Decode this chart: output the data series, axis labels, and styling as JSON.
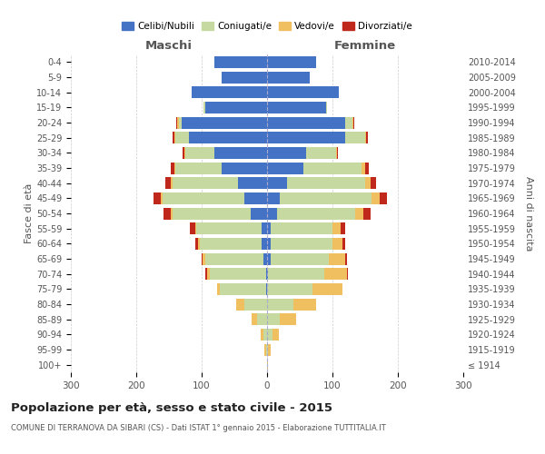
{
  "age_groups": [
    "100+",
    "95-99",
    "90-94",
    "85-89",
    "80-84",
    "75-79",
    "70-74",
    "65-69",
    "60-64",
    "55-59",
    "50-54",
    "45-49",
    "40-44",
    "35-39",
    "30-34",
    "25-29",
    "20-24",
    "15-19",
    "10-14",
    "5-9",
    "0-4"
  ],
  "birth_years": [
    "≤ 1914",
    "1915-1919",
    "1920-1924",
    "1925-1929",
    "1930-1934",
    "1935-1939",
    "1940-1944",
    "1945-1949",
    "1950-1954",
    "1955-1959",
    "1960-1964",
    "1965-1969",
    "1970-1974",
    "1975-1979",
    "1980-1984",
    "1985-1989",
    "1990-1994",
    "1995-1999",
    "2000-2004",
    "2005-2009",
    "2010-2014"
  ],
  "maschi": {
    "celibi": [
      0,
      0,
      0,
      0,
      0,
      2,
      2,
      5,
      8,
      8,
      25,
      35,
      45,
      70,
      80,
      120,
      130,
      95,
      115,
      70,
      80
    ],
    "coniugati": [
      0,
      2,
      5,
      15,
      35,
      70,
      85,
      90,
      95,
      100,
      120,
      125,
      100,
      70,
      45,
      20,
      5,
      2,
      0,
      0,
      0
    ],
    "vedovi": [
      0,
      2,
      5,
      8,
      12,
      5,
      5,
      3,
      2,
      2,
      2,
      2,
      2,
      2,
      2,
      2,
      2,
      0,
      0,
      0,
      0
    ],
    "divorziati": [
      0,
      0,
      0,
      0,
      0,
      0,
      2,
      2,
      5,
      8,
      12,
      12,
      8,
      5,
      2,
      2,
      2,
      0,
      0,
      0,
      0
    ]
  },
  "femmine": {
    "nubili": [
      0,
      0,
      0,
      0,
      0,
      0,
      2,
      5,
      5,
      5,
      15,
      20,
      30,
      55,
      60,
      120,
      120,
      90,
      110,
      65,
      75
    ],
    "coniugate": [
      0,
      2,
      8,
      20,
      40,
      70,
      85,
      90,
      95,
      95,
      120,
      140,
      120,
      90,
      45,
      30,
      10,
      2,
      0,
      0,
      0
    ],
    "vedove": [
      2,
      3,
      10,
      25,
      35,
      45,
      35,
      25,
      15,
      12,
      12,
      12,
      8,
      5,
      2,
      2,
      2,
      0,
      0,
      0,
      0
    ],
    "divorziate": [
      0,
      0,
      0,
      0,
      0,
      0,
      2,
      2,
      5,
      8,
      12,
      12,
      8,
      5,
      2,
      2,
      2,
      0,
      0,
      0,
      0
    ]
  },
  "colors": {
    "celibi": "#4472C4",
    "coniugati": "#c5d9a0",
    "vedovi": "#f0c060",
    "divorziati": "#c0281c"
  },
  "xlim": 300,
  "title": "Popolazione per età, sesso e stato civile - 2015",
  "subtitle": "COMUNE DI TERRANOVA DA SIBARI (CS) - Dati ISTAT 1° gennaio 2015 - Elaborazione TUTTITALIA.IT",
  "ylabel_left": "Fasce di età",
  "ylabel_right": "Anni di nascita",
  "xlabel_maschi": "Maschi",
  "xlabel_femmine": "Femmine",
  "legend_labels": [
    "Celibi/Nubili",
    "Coniugati/e",
    "Vedovi/e",
    "Divorziati/e"
  ],
  "background_color": "#ffffff",
  "grid_color": "#cccccc"
}
